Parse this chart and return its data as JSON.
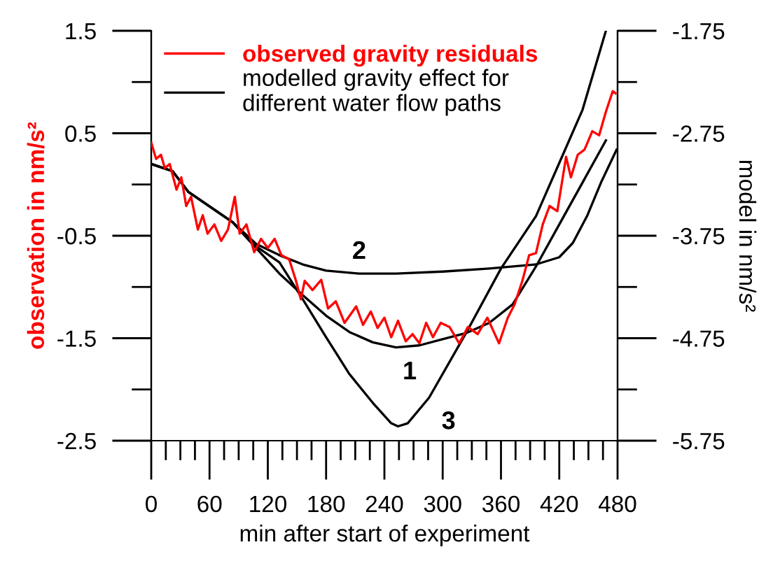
{
  "chart_data": {
    "type": "line",
    "xlabel": "min after start of experiment",
    "ylabel": "observation in nm/s²",
    "y2label": "model in nm/s²",
    "legend": "top left",
    "grid": false,
    "marker": "none",
    "line_style": "solid",
    "xlim": [
      0,
      480
    ],
    "xticks": [
      0,
      {
        "value": 15,
        "label": null
      },
      {
        "value": 30,
        "label": null
      },
      {
        "value": 45,
        "label": null
      },
      60,
      {
        "value": 75,
        "label": null
      },
      {
        "value": 90,
        "label": null
      },
      {
        "value": 105,
        "label": null
      },
      120,
      {
        "value": 135,
        "label": null
      },
      {
        "value": 150,
        "label": null
      },
      {
        "value": 165,
        "label": null
      },
      180,
      {
        "value": 195,
        "label": null
      },
      {
        "value": 210,
        "label": null
      },
      {
        "value": 225,
        "label": null
      },
      240,
      {
        "value": 255,
        "label": null
      },
      {
        "value": 270,
        "label": null
      },
      {
        "value": 285,
        "label": null
      },
      300,
      {
        "value": 315,
        "label": null
      },
      {
        "value": 330,
        "label": null
      },
      {
        "value": 345,
        "label": null
      },
      360,
      {
        "value": 375,
        "label": null
      },
      {
        "value": 390,
        "label": null
      },
      {
        "value": 405,
        "label": null
      },
      420,
      {
        "value": 435,
        "label": null
      },
      {
        "value": 450,
        "label": null
      },
      {
        "value": 465,
        "label": null
      },
      480
    ],
    "ylim": [
      -2.5,
      1.5
    ],
    "yticks": [
      -2.5,
      {
        "value": -2.0,
        "label": null
      },
      -1.5,
      {
        "value": -1.0,
        "label": null
      },
      -0.5,
      {
        "value": 0.0,
        "label": null
      },
      0.5,
      {
        "value": 1.0,
        "label": null
      },
      1.5
    ],
    "y2lim": [
      -5.75,
      -1.75
    ],
    "y2ticks": [
      -5.75,
      {
        "value": -5.25,
        "label": null
      },
      -4.75,
      {
        "value": -4.25,
        "label": null
      },
      -3.75,
      {
        "value": -3.25,
        "label": null
      },
      -2.75,
      {
        "value": -2.25,
        "label": null
      },
      -1.75
    ],
    "series": [
      {
        "name": "observed gravity residuals",
        "color": "#ff0000",
        "x": [
          0,
          5,
          10,
          14,
          19,
          26,
          31,
          36,
          41,
          48,
          53,
          58,
          65,
          72,
          79,
          86,
          91,
          98,
          106,
          113,
          120,
          127,
          134,
          142,
          149,
          154,
          158,
          166,
          175,
          182,
          190,
          199,
          211,
          218,
          226,
          233,
          240,
          247,
          254,
          262,
          269,
          276,
          283,
          290,
          298,
          307,
          317,
          326,
          336,
          346,
          358,
          367,
          374,
          382,
          389,
          396,
          403,
          410,
          418,
          427,
          432,
          439,
          446,
          454,
          461,
          468,
          475,
          478
        ],
        "values": [
          0.41,
          0.25,
          0.29,
          0.16,
          0.2,
          -0.05,
          0.07,
          -0.21,
          -0.12,
          -0.44,
          -0.3,
          -0.48,
          -0.39,
          -0.55,
          -0.44,
          -0.12,
          -0.48,
          -0.39,
          -0.66,
          -0.53,
          -0.62,
          -0.53,
          -0.69,
          -0.73,
          -0.94,
          -1.12,
          -0.94,
          -1.03,
          -0.93,
          -1.21,
          -1.14,
          -1.35,
          -1.19,
          -1.37,
          -1.24,
          -1.4,
          -1.3,
          -1.49,
          -1.33,
          -1.53,
          -1.46,
          -1.55,
          -1.35,
          -1.49,
          -1.35,
          -1.39,
          -1.55,
          -1.39,
          -1.46,
          -1.3,
          -1.55,
          -1.3,
          -1.17,
          -0.94,
          -0.69,
          -0.67,
          -0.39,
          -0.21,
          -0.26,
          0.27,
          0.07,
          0.29,
          0.34,
          0.52,
          0.48,
          0.71,
          0.91,
          0.89
        ]
      },
      {
        "name": "modelled gravity effect for\ndifferent water flow paths",
        "color": "#000000",
        "axis": "y2",
        "x": [
          0,
          22,
          38,
          84,
          108,
          132,
          156,
          180,
          204,
          228,
          252,
          276,
          300,
          324,
          348,
          372,
          396,
          420,
          444,
          468
        ],
        "values": [
          -3.05,
          -3.12,
          -3.32,
          -3.62,
          -3.87,
          -4.12,
          -4.33,
          -4.53,
          -4.69,
          -4.79,
          -4.84,
          -4.82,
          -4.76,
          -4.7,
          -4.6,
          -4.42,
          -4.05,
          -3.64,
          -3.23,
          -2.82
        ]
      },
      {
        "color": "#000000",
        "axis": "y2",
        "x": [
          0,
          22,
          38,
          84,
          108,
          132,
          156,
          180,
          214,
          252,
          300,
          348,
          396,
          420,
          434,
          449,
          463,
          479
        ],
        "values": [
          -3.05,
          -3.12,
          -3.32,
          -3.62,
          -3.83,
          -3.94,
          -4.03,
          -4.09,
          -4.12,
          -4.12,
          -4.1,
          -4.07,
          -4.03,
          -3.96,
          -3.82,
          -3.55,
          -3.23,
          -2.91
        ]
      },
      {
        "color": "#000000",
        "axis": "y2",
        "x": [
          0,
          22,
          38,
          84,
          103,
          132,
          156,
          180,
          204,
          228,
          247,
          254,
          264,
          286,
          324,
          360,
          396,
          420,
          444,
          468
        ],
        "values": [
          -3.05,
          -3.12,
          -3.32,
          -3.62,
          -3.82,
          -4.01,
          -4.37,
          -4.74,
          -5.1,
          -5.38,
          -5.58,
          -5.61,
          -5.58,
          -5.33,
          -4.7,
          -4.07,
          -3.56,
          -3.04,
          -2.52,
          -1.75
        ]
      }
    ],
    "annotations": [
      "1",
      "2",
      "3"
    ]
  }
}
